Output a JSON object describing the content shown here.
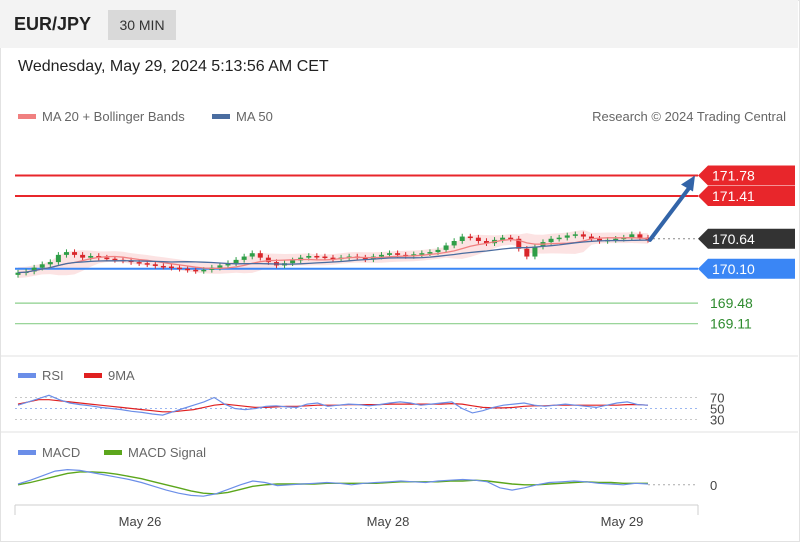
{
  "header": {
    "pair": "EUR/JPY",
    "timeframe": "30 MIN"
  },
  "datetime": "Wednesday, May 29, 2024 5:13:56 AM CET",
  "legend": {
    "ma20": "MA 20 + Bollinger Bands",
    "ma50": "MA 50",
    "credit": "Research © 2024 Trading Central",
    "rsi": "RSI",
    "rsi_ma": "9MA",
    "macd": "MACD",
    "macd_signal": "MACD Signal"
  },
  "colors": {
    "resistance": "#e8262b",
    "current": "#333333",
    "pivot": "#3a86f5",
    "support": "#8ccf8c",
    "support_text": "#2e8b2e",
    "candle_up": "#2e9e47",
    "candle_down": "#d9262b",
    "ma20": "#f08080",
    "ma50": "#4a6da0",
    "band": "#fbd9d9",
    "arrow": "#3264a8",
    "rsi": "#6b8ee8",
    "rsi_ma": "#e02020",
    "macd": "#6b8ee8",
    "macd_signal": "#5ca61c"
  },
  "chart_data": [
    {
      "type": "line",
      "panel": "price",
      "levels": [
        {
          "name": "resistance-2",
          "value": 171.78,
          "label": "171.78",
          "kind": "resistance"
        },
        {
          "name": "resistance-1",
          "value": 171.41,
          "label": "171.41",
          "kind": "resistance"
        },
        {
          "name": "current",
          "value": 170.64,
          "label": "170.64",
          "kind": "current"
        },
        {
          "name": "pivot",
          "value": 170.1,
          "label": "170.10",
          "kind": "pivot"
        },
        {
          "name": "support-1",
          "value": 169.48,
          "label": "169.48",
          "kind": "support"
        },
        {
          "name": "support-2",
          "value": 169.11,
          "label": "169.11",
          "kind": "support"
        }
      ],
      "x_ticks": [
        "May 26",
        "May 28",
        "May 29"
      ],
      "close": [
        170.03,
        170.05,
        170.12,
        170.18,
        170.22,
        170.35,
        170.4,
        170.35,
        170.3,
        170.33,
        170.3,
        170.28,
        170.26,
        170.25,
        170.22,
        170.2,
        170.18,
        170.15,
        170.14,
        170.12,
        170.1,
        170.08,
        170.06,
        170.08,
        170.12,
        170.16,
        170.2,
        170.26,
        170.32,
        170.38,
        170.3,
        170.22,
        170.16,
        170.2,
        170.25,
        170.3,
        170.33,
        170.32,
        170.3,
        170.28,
        170.3,
        170.32,
        170.3,
        170.27,
        170.32,
        170.35,
        170.38,
        170.35,
        170.33,
        170.36,
        170.38,
        170.4,
        170.44,
        170.52,
        170.6,
        170.68,
        170.66,
        170.6,
        170.56,
        170.62,
        170.66,
        170.64,
        170.46,
        170.32,
        170.5,
        170.58,
        170.64,
        170.66,
        170.7,
        170.72,
        170.68,
        170.64,
        170.6,
        170.62,
        170.64,
        170.66,
        170.72,
        170.66,
        170.62
      ],
      "ylim": [
        168.6,
        172.6
      ]
    },
    {
      "type": "line",
      "panel": "rsi",
      "series": [
        {
          "name": "RSI",
          "values": [
            56,
            62,
            68,
            74,
            66,
            60,
            57,
            55,
            52,
            50,
            48,
            45,
            43,
            40,
            38,
            44,
            50,
            56,
            62,
            70,
            58,
            50,
            48,
            50,
            54,
            55,
            53,
            52,
            58,
            60,
            54,
            56,
            58,
            57,
            55,
            57,
            60,
            62,
            60,
            56,
            58,
            60,
            62,
            50,
            42,
            46,
            52,
            56,
            58,
            60,
            56,
            54,
            56,
            58,
            56,
            54,
            52,
            56,
            60,
            62,
            57,
            56
          ]
        },
        {
          "name": "9MA",
          "values": [
            58,
            62,
            66,
            66,
            64,
            62,
            60,
            58,
            56,
            54,
            52,
            50,
            48,
            46,
            44,
            44,
            46,
            48,
            52,
            56,
            58,
            56,
            54,
            52,
            52,
            53,
            54,
            54,
            55,
            56,
            56,
            56,
            57,
            57,
            57,
            57,
            58,
            58,
            58,
            58,
            58,
            58,
            59,
            58,
            55,
            52,
            51,
            51,
            52,
            54,
            55,
            55,
            56,
            56,
            56,
            56,
            56,
            56,
            56,
            57,
            57,
            56
          ]
        }
      ],
      "y_ticks": [
        "70",
        "50",
        "30"
      ],
      "ylim": [
        20,
        80
      ]
    },
    {
      "type": "line",
      "panel": "macd",
      "series": [
        {
          "name": "MACD",
          "values": [
            0.01,
            0.06,
            0.12,
            0.18,
            0.2,
            0.19,
            0.16,
            0.13,
            0.1,
            0.07,
            0.03,
            -0.02,
            -0.07,
            -0.11,
            -0.14,
            -0.15,
            -0.12,
            -0.06,
            0.0,
            0.05,
            0.03,
            -0.01,
            0.0,
            0.01,
            0.02,
            0.03,
            0.02,
            0.0,
            0.02,
            0.03,
            0.04,
            0.05,
            0.04,
            0.03,
            0.05,
            0.06,
            0.07,
            0.06,
            0.04,
            -0.04,
            -0.07,
            -0.04,
            0.0,
            0.03,
            0.04,
            0.05,
            0.04,
            0.02,
            0.01,
            0.0,
            0.02,
            0.01
          ]
        },
        {
          "name": "MACD Signal",
          "values": [
            0.0,
            0.03,
            0.07,
            0.11,
            0.15,
            0.17,
            0.17,
            0.16,
            0.14,
            0.11,
            0.08,
            0.04,
            0.0,
            -0.04,
            -0.08,
            -0.11,
            -0.12,
            -0.1,
            -0.06,
            -0.02,
            0.0,
            0.01,
            0.01,
            0.01,
            0.01,
            0.02,
            0.02,
            0.02,
            0.02,
            0.02,
            0.03,
            0.04,
            0.04,
            0.04,
            0.04,
            0.05,
            0.05,
            0.06,
            0.05,
            0.03,
            0.01,
            0.0,
            0.0,
            0.01,
            0.02,
            0.03,
            0.04,
            0.03,
            0.03,
            0.02,
            0.02,
            0.02
          ]
        }
      ],
      "y_ticks": [
        "0"
      ],
      "ylim": [
        -0.2,
        0.3
      ]
    }
  ]
}
